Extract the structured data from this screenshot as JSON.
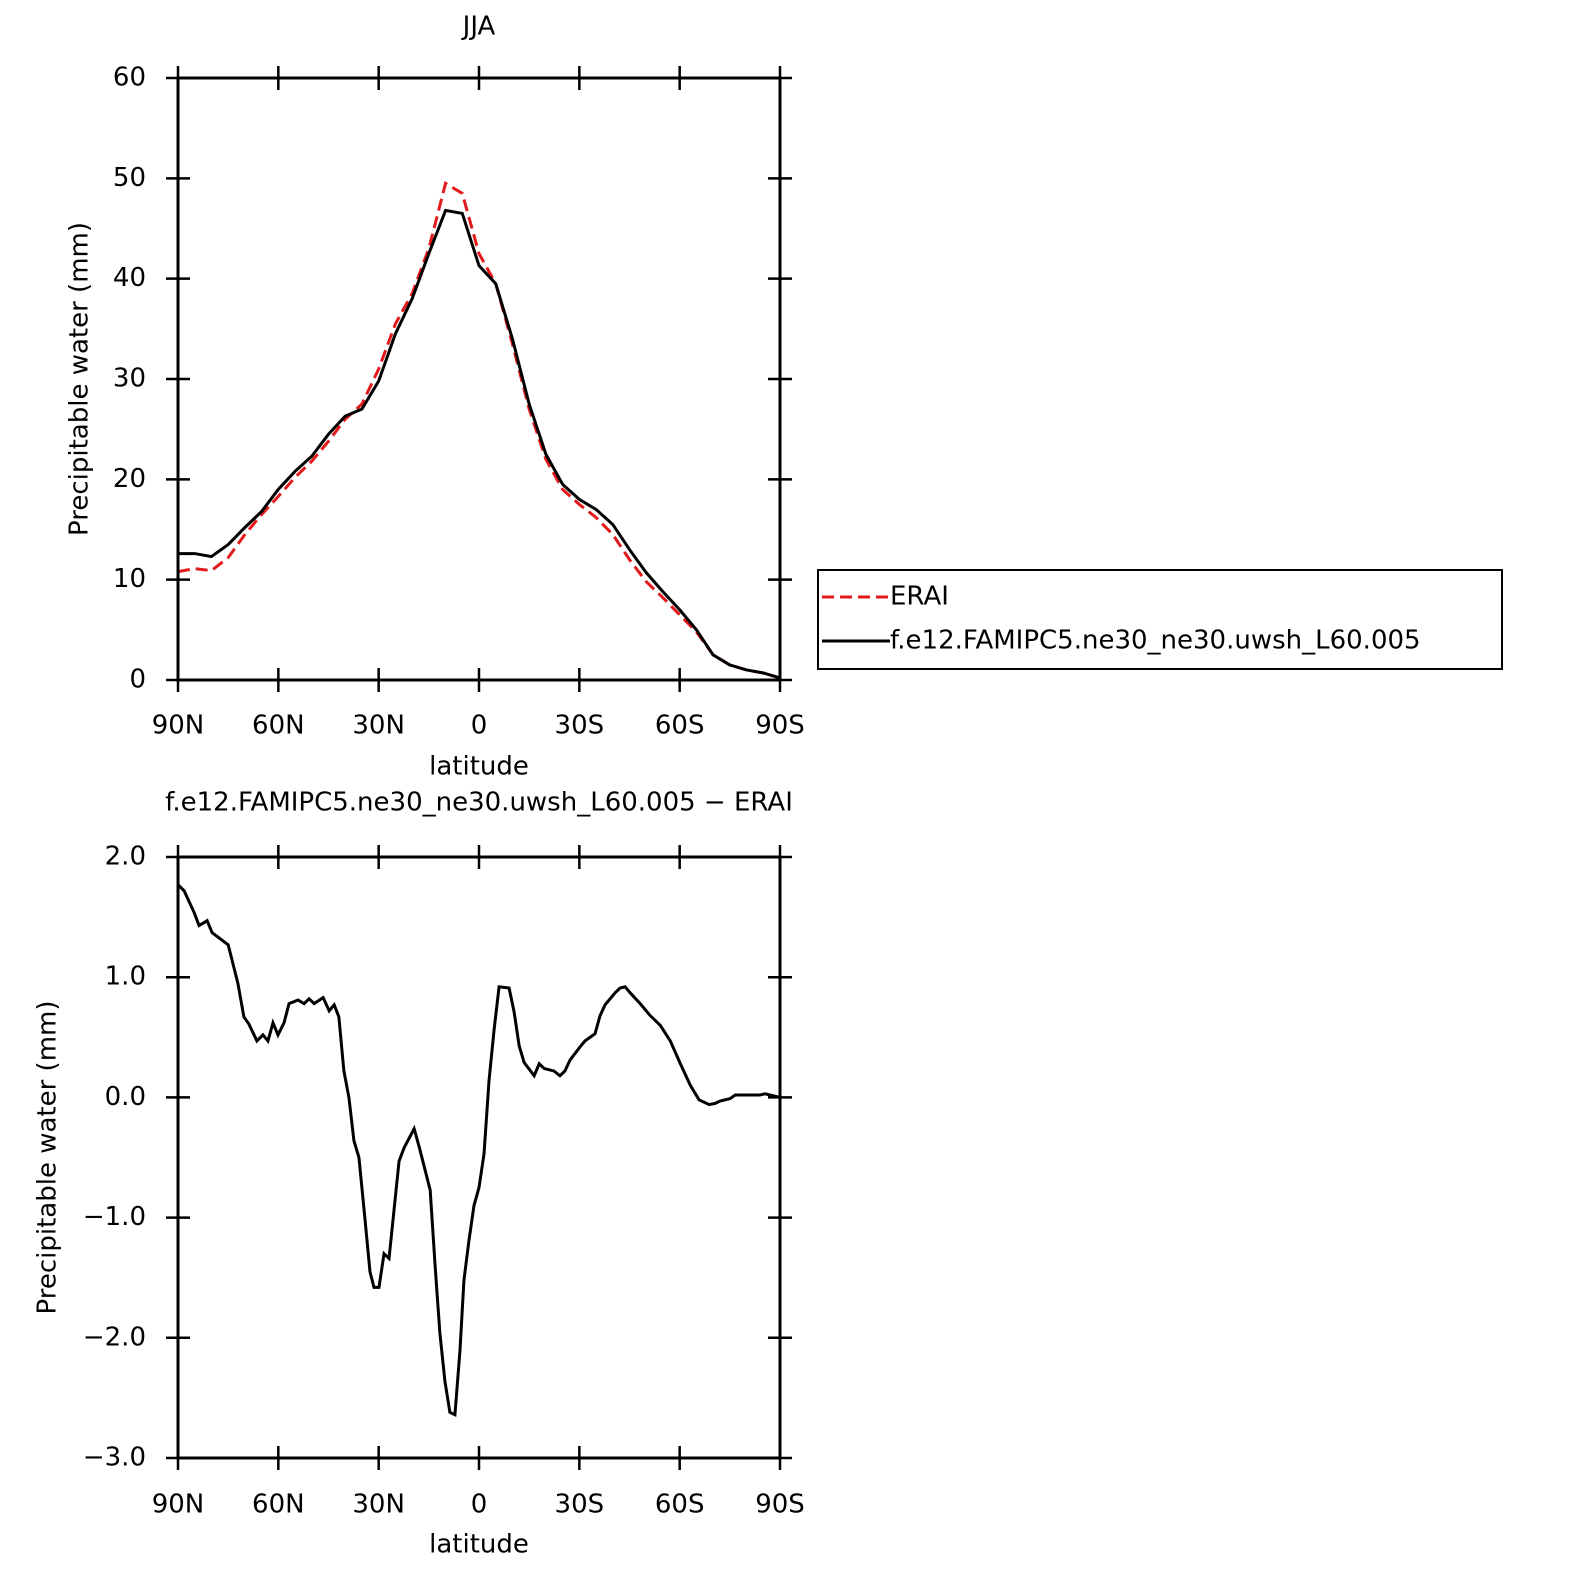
{
  "chart_data": [
    {
      "type": "line",
      "title": "JJA",
      "xlabel": "latitude",
      "ylabel": "Precipitable water (mm)",
      "x": [
        90,
        85,
        80,
        75,
        70,
        65,
        60,
        55,
        50,
        45,
        40,
        35,
        30,
        25,
        20,
        15,
        10,
        5,
        0,
        -5,
        -10,
        -15,
        -20,
        -25,
        -30,
        -35,
        -40,
        -45,
        -50,
        -55,
        -60,
        -65,
        -70,
        -75,
        -80,
        -85,
        -90
      ],
      "series": [
        {
          "name": "ERAI",
          "color": "#e31a1c",
          "dash": "dashed",
          "values": [
            10.8,
            11.1,
            10.9,
            12.2,
            14.5,
            16.5,
            18.3,
            20.2,
            21.8,
            23.8,
            26.0,
            27.5,
            31.0,
            35.5,
            38.5,
            43.0,
            49.5,
            48.5,
            42.5,
            39.5,
            33.5,
            27.0,
            22.0,
            19.0,
            17.5,
            16.2,
            14.5,
            12.0,
            9.8,
            8.2,
            6.5,
            4.8,
            2.5,
            1.5,
            1.0,
            0.7,
            0.2
          ]
        },
        {
          "name": "f.e12.FAMIPC5.ne30_ne30.uwsh_L60.005",
          "color": "#000000",
          "dash": "solid",
          "values": [
            12.6,
            12.6,
            12.3,
            13.5,
            15.2,
            16.8,
            19.0,
            20.8,
            22.3,
            24.5,
            26.3,
            27.0,
            29.8,
            34.5,
            38.0,
            42.5,
            46.8,
            46.5,
            41.3,
            39.5,
            34.0,
            27.5,
            22.5,
            19.5,
            18.0,
            17.0,
            15.5,
            13.0,
            10.7,
            8.8,
            7.0,
            5.0,
            2.5,
            1.5,
            1.0,
            0.7,
            0.2
          ]
        }
      ],
      "xlim": [
        90,
        -90
      ],
      "xticks": [
        {
          "value": 90,
          "label": "90N"
        },
        {
          "value": 60,
          "label": "60N"
        },
        {
          "value": 30,
          "label": "30N"
        },
        0,
        {
          "value": -30,
          "label": "30S"
        },
        {
          "value": -60,
          "label": "60S"
        },
        {
          "value": -90,
          "label": "90S"
        }
      ],
      "ylim": [
        0,
        60
      ],
      "yticks": [
        0,
        10,
        20,
        30,
        40,
        50,
        60
      ],
      "legend": "right"
    },
    {
      "type": "line",
      "title": "f.e12.FAMIPC5.ne30_ne30.uwsh_L60.005 − ERAI",
      "xlabel": "latitude",
      "ylabel": "Precipitable water (mm)",
      "x": [
        90,
        88.2,
        85.2,
        83.7,
        81.3,
        79.8,
        75.0,
        72.1,
        70.3,
        68.8,
        66.4,
        64.6,
        63.1,
        61.6,
        60.1,
        58.3,
        56.8,
        54.1,
        52.3,
        50.8,
        49.3,
        46.6,
        44.8,
        43.3,
        41.9,
        40.4,
        38.9,
        37.4,
        35.9,
        34.1,
        32.6,
        31.4,
        29.9,
        28.4,
        26.9,
        23.9,
        22.4,
        20.9,
        19.4,
        17.9,
        14.6,
        13.1,
        11.7,
        10.2,
        8.7,
        7.2,
        5.7,
        4.5,
        3.0,
        1.5,
        0.0,
        -1.5,
        -3.0,
        -4.5,
        -6.0,
        -9.0,
        -10.5,
        -12.0,
        -13.5,
        -16.5,
        -18.0,
        -19.5,
        -22.4,
        -24.2,
        -25.7,
        -27.2,
        -30.2,
        -31.7,
        -34.7,
        -36.2,
        -37.7,
        -40.7,
        -42.2,
        -43.7,
        -45.2,
        -48.2,
        -51.2,
        -54.2,
        -57.2,
        -60.2,
        -63.2,
        -65.8,
        -68.8,
        -70.6,
        -72.1,
        -75.1,
        -76.6,
        -79.6,
        -81.1,
        -82.5,
        -84.0,
        -85.5,
        -87.0,
        -90
      ],
      "values": [
        1.77,
        1.72,
        1.54,
        1.43,
        1.47,
        1.37,
        1.27,
        0.95,
        0.67,
        0.61,
        0.47,
        0.52,
        0.47,
        0.62,
        0.52,
        0.62,
        0.78,
        0.81,
        0.78,
        0.82,
        0.78,
        0.83,
        0.72,
        0.77,
        0.67,
        0.22,
        0.0,
        -0.36,
        -0.5,
        -1.01,
        -1.45,
        -1.58,
        -1.58,
        -1.3,
        -1.34,
        -0.53,
        -0.42,
        -0.34,
        -0.26,
        -0.41,
        -0.77,
        -1.41,
        -1.96,
        -2.36,
        -2.62,
        -2.64,
        -2.11,
        -1.52,
        -1.19,
        -0.9,
        -0.75,
        -0.47,
        0.14,
        0.56,
        0.92,
        0.91,
        0.71,
        0.43,
        0.29,
        0.18,
        0.28,
        0.24,
        0.22,
        0.18,
        0.22,
        0.31,
        0.42,
        0.47,
        0.53,
        0.68,
        0.77,
        0.87,
        0.91,
        0.92,
        0.87,
        0.78,
        0.68,
        0.6,
        0.47,
        0.28,
        0.1,
        -0.02,
        -0.06,
        -0.05,
        -0.03,
        -0.01,
        0.02,
        0.02,
        0.02,
        0.02,
        0.02,
        0.03,
        0.02,
        0.0
      ],
      "color": "#000000",
      "xlim": [
        90,
        -90
      ],
      "xticks": [
        {
          "value": 90,
          "label": "90N"
        },
        {
          "value": 60,
          "label": "60N"
        },
        {
          "value": 30,
          "label": "30N"
        },
        0,
        {
          "value": -30,
          "label": "30S"
        },
        {
          "value": -60,
          "label": "60S"
        },
        {
          "value": -90,
          "label": "90S"
        }
      ],
      "ylim": [
        -3,
        2
      ],
      "yticks": [
        {
          "value": -3,
          "label": "−3.0"
        },
        {
          "value": -2,
          "label": "−2.0"
        },
        {
          "value": -1,
          "label": "−1.0"
        },
        {
          "value": 0,
          "label": "0.0"
        },
        {
          "value": 1,
          "label": "1.0"
        },
        {
          "value": 2,
          "label": "2.0"
        }
      ]
    }
  ]
}
